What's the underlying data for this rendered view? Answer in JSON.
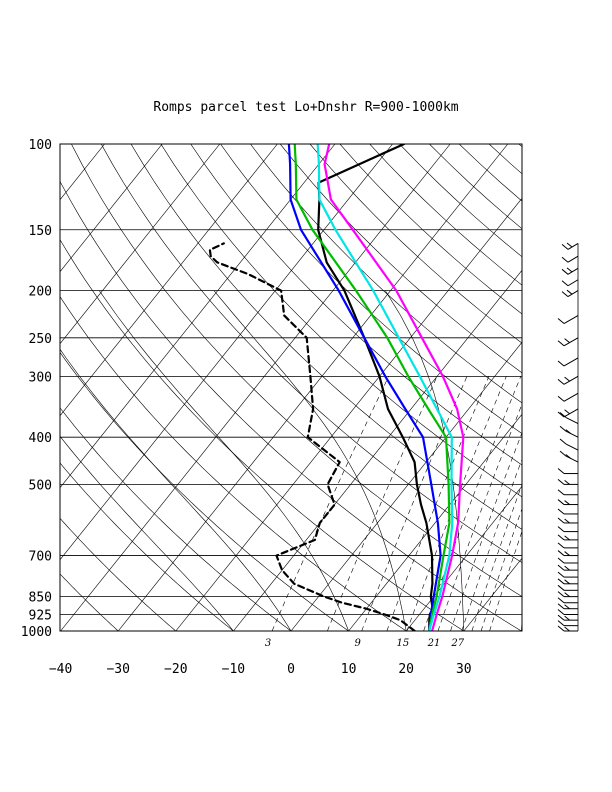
{
  "chart_data": {
    "type": "line",
    "title": "Romps parcel test Lo+Dnshr R=900-1000km",
    "xlabel": "",
    "ylabel": "",
    "pressure_levels": [
      100,
      150,
      200,
      250,
      300,
      400,
      500,
      700,
      850,
      925,
      1000
    ],
    "pressure_labels": [
      "100",
      "150",
      "200",
      "250",
      "300",
      "400",
      "500",
      "700",
      "850",
      "925",
      "1000"
    ],
    "xlim": [
      -40,
      40
    ],
    "ylim": [
      1000,
      100
    ],
    "log_pressure_axis": true,
    "temperature_ticks": [
      -40,
      -30,
      -20,
      -10,
      0,
      10,
      20,
      30
    ],
    "temperature_labels": [
      "−40",
      "−30",
      "−20",
      "−10",
      "0",
      "10",
      "20",
      "30"
    ],
    "mixing_ratio_labels": [
      "3",
      "9",
      "15",
      "21",
      "27"
    ],
    "mixing_ratio_values": [
      3,
      9,
      15,
      21,
      27
    ],
    "grid": true,
    "series": [
      {
        "color": "#000000",
        "style": "solid",
        "points": [
          [
            1000,
            24
          ],
          [
            950,
            22.5
          ],
          [
            925,
            21.8
          ],
          [
            900,
            21.5
          ],
          [
            850,
            19.5
          ],
          [
            800,
            18
          ],
          [
            700,
            14
          ],
          [
            600,
            8.5
          ],
          [
            550,
            5
          ],
          [
            500,
            1.5
          ],
          [
            450,
            -2
          ],
          [
            400,
            -7.5
          ],
          [
            350,
            -14
          ],
          [
            300,
            -20
          ],
          [
            250,
            -28
          ],
          [
            200,
            -38
          ],
          [
            175,
            -45
          ],
          [
            150,
            -51
          ],
          [
            130,
            -55
          ],
          [
            120,
            -57.5
          ],
          [
            110,
            -53
          ],
          [
            100,
            -48
          ]
        ]
      },
      {
        "color": "#000000",
        "style": "dashed",
        "points": [
          [
            1000,
            21.5
          ],
          [
            975,
            19.5
          ],
          [
            950,
            17.5
          ],
          [
            925,
            14
          ],
          [
            900,
            10
          ],
          [
            875,
            5
          ],
          [
            850,
            1
          ],
          [
            800,
            -6
          ],
          [
            750,
            -10
          ],
          [
            700,
            -13
          ],
          [
            650,
            -8.5
          ],
          [
            600,
            -10
          ],
          [
            550,
            -10
          ],
          [
            500,
            -14
          ],
          [
            450,
            -15
          ],
          [
            400,
            -24
          ],
          [
            350,
            -27
          ],
          [
            300,
            -32
          ],
          [
            250,
            -38
          ],
          [
            225,
            -45
          ],
          [
            200,
            -49
          ],
          [
            185,
            -57
          ],
          [
            175,
            -64
          ],
          [
            170,
            -66
          ],
          [
            165,
            -67
          ],
          [
            160,
            -65.5
          ]
        ]
      },
      {
        "color": "#0000ff",
        "style": "solid",
        "points": [
          [
            1000,
            24
          ],
          [
            925,
            22
          ],
          [
            850,
            20
          ],
          [
            700,
            15.5
          ],
          [
            600,
            10.5
          ],
          [
            500,
            4
          ],
          [
            400,
            -4
          ],
          [
            350,
            -11
          ],
          [
            300,
            -19
          ],
          [
            250,
            -28
          ],
          [
            200,
            -39
          ],
          [
            150,
            -54
          ],
          [
            130,
            -60
          ],
          [
            110,
            -65
          ],
          [
            100,
            -68
          ]
        ]
      },
      {
        "color": "#00bb00",
        "style": "solid",
        "points": [
          [
            1000,
            24
          ],
          [
            925,
            22.2
          ],
          [
            850,
            20.5
          ],
          [
            700,
            16
          ],
          [
            600,
            12.5
          ],
          [
            500,
            7
          ],
          [
            400,
            0
          ],
          [
            350,
            -7
          ],
          [
            300,
            -15
          ],
          [
            250,
            -24
          ],
          [
            200,
            -36
          ],
          [
            150,
            -52
          ],
          [
            130,
            -59
          ],
          [
            110,
            -64
          ],
          [
            100,
            -67
          ]
        ]
      },
      {
        "color": "#00e5e5",
        "style": "solid",
        "points": [
          [
            1000,
            24
          ],
          [
            925,
            22.5
          ],
          [
            850,
            21
          ],
          [
            700,
            17
          ],
          [
            600,
            13
          ],
          [
            500,
            7.5
          ],
          [
            400,
            1
          ],
          [
            350,
            -5.5
          ],
          [
            300,
            -13
          ],
          [
            250,
            -22
          ],
          [
            200,
            -33
          ],
          [
            150,
            -48
          ],
          [
            130,
            -55
          ],
          [
            110,
            -60
          ],
          [
            100,
            -63
          ]
        ]
      },
      {
        "color": "#ff00ff",
        "style": "solid",
        "points": [
          [
            1000,
            24.5
          ],
          [
            925,
            23
          ],
          [
            850,
            21.5
          ],
          [
            700,
            17.5
          ],
          [
            600,
            14
          ],
          [
            500,
            9
          ],
          [
            400,
            3
          ],
          [
            350,
            -2
          ],
          [
            300,
            -9
          ],
          [
            250,
            -18
          ],
          [
            200,
            -29
          ],
          [
            150,
            -45
          ],
          [
            130,
            -53
          ],
          [
            110,
            -59
          ],
          [
            100,
            -61
          ]
        ]
      }
    ],
    "wind_profile_pressures": [
      1000,
      975,
      950,
      925,
      900,
      875,
      850,
      825,
      800,
      775,
      750,
      725,
      700,
      675,
      650,
      625,
      600,
      575,
      550,
      525,
      500,
      475,
      450,
      425,
      400,
      375,
      350,
      325,
      300,
      275,
      250,
      225,
      200,
      190,
      180,
      170,
      160
    ]
  }
}
